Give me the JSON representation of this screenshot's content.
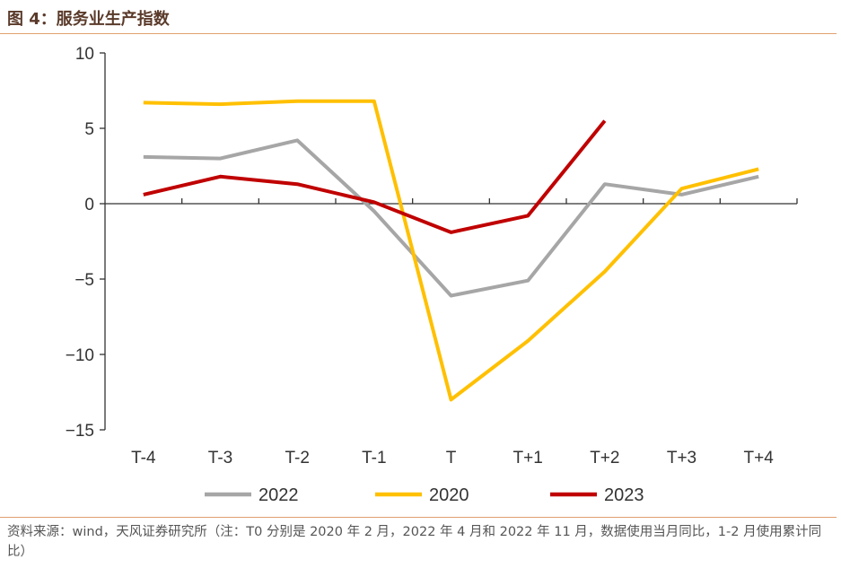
{
  "title": "图 4：服务业生产指数",
  "source_note": "资料来源：wind，天风证券研究所（注：T0 分别是 2020 年 2 月，2022 年 4 月和 2022 年 11 月，数据使用当月同比，1-2 月使用累计同比）",
  "chart_data": {
    "type": "line",
    "categories": [
      "T-4",
      "T-3",
      "T-2",
      "T-1",
      "T",
      "T+1",
      "T+2",
      "T+3",
      "T+4"
    ],
    "ylim": [
      -15,
      10
    ],
    "yticks": [
      10,
      5,
      0,
      -5,
      -10,
      -15
    ],
    "ytick_labels": [
      "10",
      "5",
      "0",
      "−5",
      "−10",
      "−15"
    ],
    "grid": false,
    "legend_position": "bottom",
    "series": [
      {
        "name": "2022",
        "color": "#a6a6a6",
        "values": [
          3.1,
          3.0,
          4.2,
          -0.5,
          -6.1,
          -5.1,
          1.3,
          0.6,
          1.8
        ]
      },
      {
        "name": "2020",
        "color": "#ffc000",
        "values": [
          6.7,
          6.6,
          6.8,
          6.8,
          -13.0,
          -9.1,
          -4.5,
          1.0,
          2.3
        ]
      },
      {
        "name": "2023",
        "color": "#c00000",
        "values": [
          0.6,
          1.8,
          1.3,
          0.1,
          -1.9,
          -0.8,
          5.5,
          null,
          null
        ]
      }
    ]
  }
}
